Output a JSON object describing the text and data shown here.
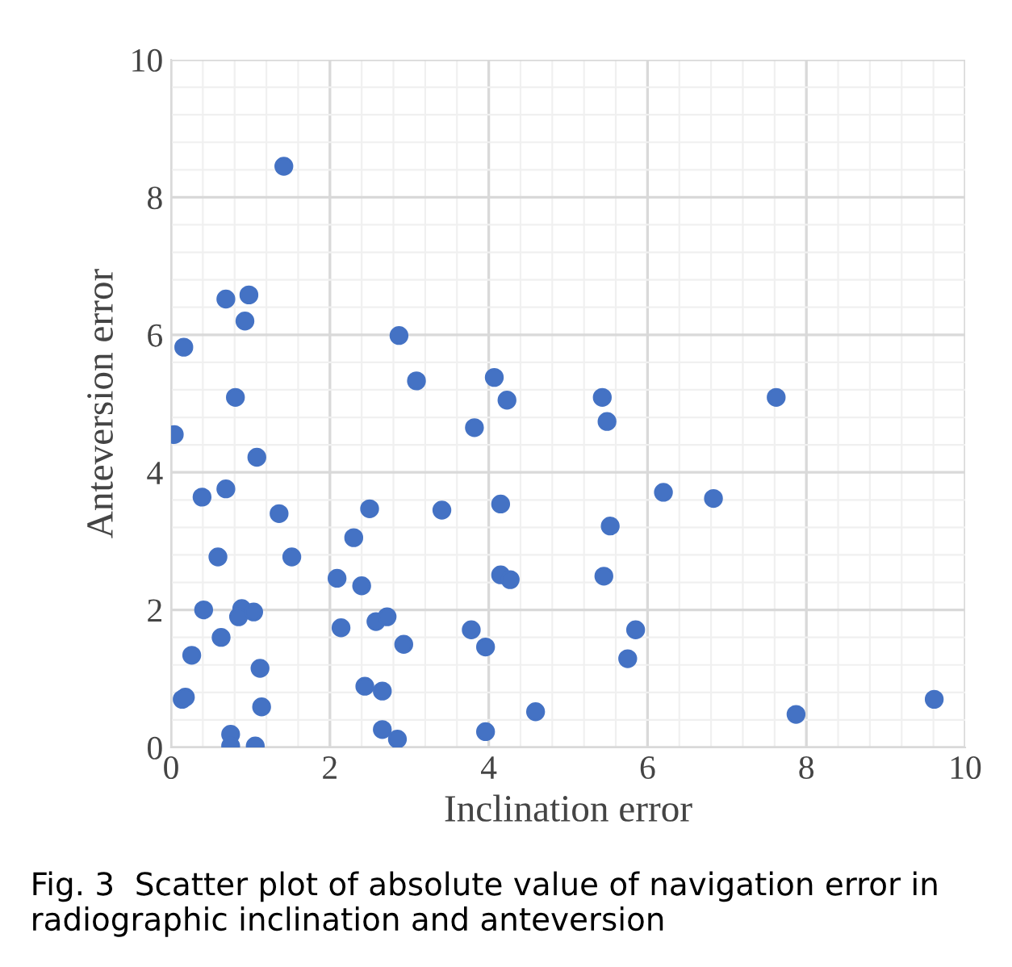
{
  "chart_data": {
    "type": "scatter",
    "xlabel": "Inclination error",
    "ylabel": "Anteversion error",
    "x": [
      0.04,
      0.16,
      0.69,
      0.98,
      0.93,
      0.81,
      1.42,
      1.08,
      0.39,
      0.69,
      1.36,
      0.59,
      1.52,
      0.41,
      0.89,
      0.85,
      1.04,
      0.63,
      0.26,
      1.12,
      0.14,
      0.18,
      1.14,
      0.75,
      0.75,
      1.06,
      2.87,
      3.09,
      2.09,
      2.3,
      2.5,
      2.4,
      2.14,
      2.58,
      2.72,
      2.93,
      2.44,
      2.66,
      2.66,
      2.85,
      3.41,
      4.07,
      4.23,
      3.82,
      4.15,
      4.15,
      4.27,
      3.78,
      3.96,
      3.96,
      4.59,
      5.43,
      5.49,
      5.53,
      5.45,
      5.85,
      5.75,
      6.2,
      6.83,
      7.62,
      7.87,
      9.61
    ],
    "series": [
      {
        "color": "#4472c4",
        "values": [
          4.55,
          5.82,
          6.52,
          6.58,
          6.2,
          5.09,
          8.45,
          4.22,
          3.64,
          3.76,
          3.4,
          2.77,
          2.77,
          2.0,
          2.02,
          1.9,
          1.97,
          1.6,
          1.34,
          1.15,
          0.7,
          0.73,
          0.59,
          0.19,
          0.02,
          0.02,
          5.99,
          5.33,
          2.46,
          3.05,
          3.47,
          2.35,
          1.74,
          1.83,
          1.9,
          1.5,
          0.89,
          0.82,
          0.26,
          0.12,
          3.45,
          5.38,
          5.05,
          4.65,
          3.54,
          2.51,
          2.44,
          1.71,
          1.46,
          0.23,
          0.52,
          5.09,
          4.74,
          3.22,
          2.49,
          1.71,
          1.29,
          3.71,
          3.62,
          5.09,
          0.48,
          0.7
        ]
      }
    ],
    "xlim": [
      0,
      10
    ],
    "ylim": [
      0,
      10
    ],
    "xticks": [
      0,
      2,
      4,
      6,
      8,
      10
    ],
    "yticks": [
      0,
      2,
      4,
      6,
      8,
      10
    ],
    "grid": true,
    "marker": "circle",
    "legend": false,
    "annotations": [
      "Fig. 3  Scatter plot of absolute value of navigation error in radiographic inclination and anteversion"
    ]
  }
}
